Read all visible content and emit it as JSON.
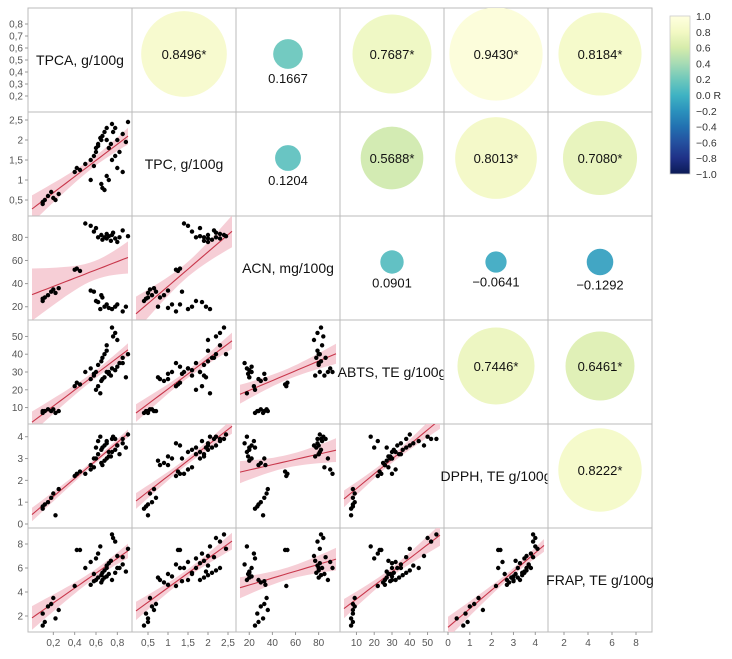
{
  "chart_data": {
    "type": "scatter-matrix",
    "variables": [
      "TPCA, g/100g",
      "TPC, g/100g",
      "ACN, mg/100g",
      "ABTS, TE g/100g",
      "DPPH, TE g/100g",
      "FRAP, TE g/100g"
    ],
    "axes": [
      {
        "range": [
          0,
          0.9
        ],
        "ticks": [
          "0,2",
          "0,4",
          "0,6",
          "0,8"
        ],
        "tick_values": [
          0.2,
          0.4,
          0.6,
          0.8
        ],
        "bottom_ticks": [
          "0,2",
          "0,4",
          "0,6",
          "0,8"
        ],
        "bottom_tick_values": [
          0.2,
          0.4,
          0.6,
          0.8
        ]
      },
      {
        "range": [
          0.2,
          2.6
        ],
        "ticks": [
          "0,5",
          "1",
          "1,5",
          "2",
          "2,5"
        ],
        "tick_values": [
          0.5,
          1,
          1.5,
          2,
          2.5
        ],
        "bottom_ticks": [
          "0,5",
          "1",
          "1,5",
          "2",
          "2,5"
        ],
        "bottom_tick_values": [
          0.5,
          1,
          1.5,
          2,
          2.5
        ]
      },
      {
        "range": [
          12,
          95
        ],
        "ticks": [
          "20",
          "40",
          "60",
          "80"
        ],
        "tick_values": [
          20,
          40,
          60,
          80
        ],
        "bottom_ticks": [
          "20",
          "40",
          "60",
          "80"
        ],
        "bottom_tick_values": [
          20,
          40,
          60,
          80
        ]
      },
      {
        "range": [
          3,
          57
        ],
        "ticks": [
          "10",
          "20",
          "30",
          "40",
          "50"
        ],
        "tick_values": [
          10,
          20,
          30,
          40,
          50
        ],
        "bottom_ticks": [
          "10",
          "20",
          "30",
          "40",
          "50"
        ],
        "bottom_tick_values": [
          10,
          20,
          30,
          40,
          50
        ]
      },
      {
        "range": [
          0,
          4.4
        ],
        "ticks": [
          "0",
          "1",
          "2",
          "3",
          "4"
        ],
        "tick_values": [
          0,
          1,
          2,
          3,
          4
        ],
        "bottom_ticks": [
          "0",
          "1",
          "2",
          "3",
          "4"
        ],
        "bottom_tick_values": [
          0,
          1,
          2,
          3,
          4
        ]
      },
      {
        "range": [
          1,
          9
        ],
        "ticks": [
          "2",
          "4",
          "6",
          "8"
        ],
        "tick_values": [
          2,
          4,
          6,
          8
        ],
        "bottom_ticks": [
          "2",
          "4",
          "6",
          "8"
        ],
        "bottom_tick_values": [
          2,
          4,
          6,
          8
        ]
      }
    ],
    "y_tick_sets": [
      {
        "labels": [
          "0,2",
          "0,3",
          "0,4",
          "0,5",
          "0,6",
          "0,7",
          "0,8"
        ],
        "values": [
          0.2,
          0.3,
          0.4,
          0.5,
          0.6,
          0.7,
          0.8
        ],
        "range": [
          0.1,
          0.9
        ]
      },
      {
        "labels": [
          "0,5",
          "1",
          "1,5",
          "2",
          "2,5"
        ],
        "values": [
          0.5,
          1,
          1.5,
          2,
          2.5
        ],
        "range": [
          0.2,
          2.6
        ]
      },
      {
        "labels": [
          "20",
          "40",
          "60",
          "80"
        ],
        "values": [
          20,
          40,
          60,
          80
        ],
        "range": [
          12,
          95
        ]
      },
      {
        "labels": [
          "10",
          "20",
          "30",
          "40",
          "50"
        ],
        "values": [
          10,
          20,
          30,
          40,
          50
        ],
        "range": [
          3,
          57
        ]
      },
      {
        "labels": [
          "0",
          "1",
          "2",
          "3",
          "4"
        ],
        "values": [
          0,
          1,
          2,
          3,
          4
        ],
        "range": [
          0,
          4.4
        ]
      },
      {
        "labels": [
          "2",
          "4",
          "6",
          "8"
        ],
        "values": [
          2,
          4,
          6,
          8
        ],
        "range": [
          1,
          9
        ]
      }
    ],
    "correlations": [
      {
        "row": 0,
        "col": 1,
        "r": 0.8496,
        "label": "0.8496*"
      },
      {
        "row": 0,
        "col": 2,
        "r": 0.1667,
        "label": "0.1667"
      },
      {
        "row": 0,
        "col": 3,
        "r": 0.7687,
        "label": "0.7687*"
      },
      {
        "row": 0,
        "col": 4,
        "r": 0.943,
        "label": "0.9430*"
      },
      {
        "row": 0,
        "col": 5,
        "r": 0.8184,
        "label": "0.8184*"
      },
      {
        "row": 1,
        "col": 2,
        "r": 0.1204,
        "label": "0.1204"
      },
      {
        "row": 1,
        "col": 3,
        "r": 0.5688,
        "label": "0.5688*"
      },
      {
        "row": 1,
        "col": 4,
        "r": 0.8013,
        "label": "0.8013*"
      },
      {
        "row": 1,
        "col": 5,
        "r": 0.708,
        "label": "0.7080*"
      },
      {
        "row": 2,
        "col": 3,
        "r": 0.0901,
        "label": "0.0901"
      },
      {
        "row": 2,
        "col": 4,
        "r": -0.0641,
        "label": "−0.0641"
      },
      {
        "row": 2,
        "col": 5,
        "r": -0.1292,
        "label": "−0.1292"
      },
      {
        "row": 3,
        "col": 4,
        "r": 0.7446,
        "label": "0.7446*"
      },
      {
        "row": 3,
        "col": 5,
        "r": 0.6461,
        "label": "0.6461*"
      },
      {
        "row": 4,
        "col": 5,
        "r": 0.8222,
        "label": "0.8222*"
      }
    ],
    "colorbar": {
      "labels": [
        "1.0",
        "0.8",
        "0.6",
        "0.4",
        "0.2",
        "0.0 R",
        "−0.2",
        "−0.4",
        "−0.6",
        "−0.8",
        "−1.0"
      ],
      "values": [
        1.0,
        0.8,
        0.6,
        0.4,
        0.2,
        0.0,
        -0.2,
        -0.4,
        -0.6,
        -0.8,
        -1.0
      ],
      "colors": [
        "#ffffe0",
        "#f3f9c4",
        "#d6ecab",
        "#a6dbb4",
        "#6fc8bb",
        "#3fb3c3",
        "#2b92bd",
        "#2271b1",
        "#24509f",
        "#1f3187",
        "#0b1a55"
      ]
    },
    "colors": {
      "points": "#000000",
      "fit_line": "#c8374b",
      "confidence_band": "#f4c6cf",
      "frame": "#bbbbbb"
    },
    "samples": [
      [
        0.1,
        0.4,
        25,
        7,
        0.7,
        1.2
      ],
      [
        0.1,
        0.45,
        27,
        8,
        0.8,
        2.2
      ],
      [
        0.12,
        0.5,
        28,
        8,
        0.9,
        1.5
      ],
      [
        0.15,
        0.6,
        30,
        9,
        1.0,
        2.8
      ],
      [
        0.18,
        0.7,
        33,
        8,
        1.2,
        3.0
      ],
      [
        0.2,
        0.55,
        35,
        9,
        1.4,
        3.5
      ],
      [
        0.22,
        0.5,
        32,
        7,
        0.4,
        1.8
      ],
      [
        0.25,
        0.65,
        36,
        8,
        1.6,
        2.5
      ],
      [
        0.4,
        1.2,
        52,
        22,
        2.2,
        4.5
      ],
      [
        0.42,
        1.3,
        53,
        24,
        2.3,
        7.5
      ],
      [
        0.45,
        1.25,
        51,
        23,
        2.4,
        7.5
      ],
      [
        0.5,
        1.4,
        92,
        30,
        2.3,
        6.0
      ],
      [
        0.55,
        1.5,
        90,
        32,
        2.5,
        6.5
      ],
      [
        0.58,
        1.6,
        85,
        28,
        2.6,
        5.5
      ],
      [
        0.6,
        1.8,
        88,
        30,
        3.0,
        5.0
      ],
      [
        0.62,
        1.9,
        80,
        34,
        3.2,
        5.2
      ],
      [
        0.65,
        2.0,
        82,
        36,
        3.4,
        5.4
      ],
      [
        0.66,
        2.1,
        78,
        38,
        3.5,
        5.6
      ],
      [
        0.68,
        2.2,
        80,
        40,
        3.6,
        5.8
      ],
      [
        0.7,
        2.3,
        83,
        45,
        3.8,
        6.0
      ],
      [
        0.7,
        2.0,
        79,
        42,
        3.7,
        6.2
      ],
      [
        0.72,
        1.8,
        81,
        30,
        3.3,
        6.4
      ],
      [
        0.74,
        1.9,
        77,
        28,
        3.1,
        6.6
      ],
      [
        0.75,
        2.4,
        82,
        55,
        3.9,
        8.8
      ],
      [
        0.76,
        2.2,
        84,
        50,
        4.0,
        8.5
      ],
      [
        0.78,
        2.3,
        79,
        52,
        3.9,
        8.2
      ],
      [
        0.8,
        2.0,
        76,
        48,
        3.6,
        7.0
      ],
      [
        0.82,
        1.7,
        80,
        35,
        3.2,
        6.0
      ],
      [
        0.65,
        0.9,
        30,
        25,
        2.8,
        4.8
      ],
      [
        0.66,
        0.8,
        28,
        26,
        2.7,
        5.0
      ],
      [
        0.68,
        0.75,
        20,
        27,
        2.9,
        5.2
      ],
      [
        0.7,
        1.1,
        22,
        30,
        3.0,
        5.3
      ],
      [
        0.72,
        1.0,
        19,
        29,
        3.1,
        5.5
      ],
      [
        0.75,
        1.5,
        18,
        32,
        3.3,
        5.0
      ],
      [
        0.78,
        1.6,
        20,
        31,
        3.4,
        5.6
      ],
      [
        0.8,
        1.3,
        22,
        33,
        3.6,
        6.0
      ],
      [
        0.85,
        1.2,
        16,
        35,
        3.7,
        6.3
      ],
      [
        0.6,
        1.7,
        25,
        20,
        3.5,
        6.8
      ],
      [
        0.62,
        1.85,
        24,
        22,
        3.8,
        7.2
      ],
      [
        0.64,
        2.05,
        18,
        18,
        4.0,
        7.8
      ],
      [
        0.55,
        1.0,
        34,
        26,
        2.7,
        4.6
      ],
      [
        0.58,
        1.35,
        33,
        29,
        3.0,
        4.9
      ],
      [
        0.9,
        2.45,
        81,
        40,
        4.1,
        7.6
      ],
      [
        0.85,
        2.15,
        86,
        38,
        3.9,
        6.9
      ],
      [
        0.88,
        1.95,
        20,
        27,
        3.5,
        5.7
      ]
    ]
  }
}
